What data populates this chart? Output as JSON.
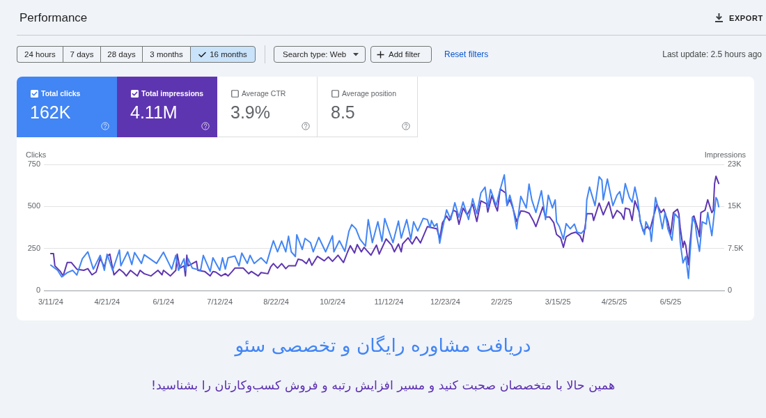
{
  "chart_data": {
    "type": "line",
    "title": "Performance",
    "ylabel": "Clicks",
    "y2label": "Impressions",
    "xlim": [
      "2024-03-06",
      "2025-07-14"
    ],
    "xticks": [
      {
        "value": "2024-03-11",
        "label": "3/11/24"
      },
      {
        "value": "2024-04-21",
        "label": "4/21/24"
      },
      {
        "value": "2024-06-01",
        "label": "6/1/24"
      },
      {
        "value": "2024-07-12",
        "label": "7/12/24"
      },
      {
        "value": "2024-08-22",
        "label": "8/22/24"
      },
      {
        "value": "2024-10-02",
        "label": "10/2/24"
      },
      {
        "value": "2024-11-12",
        "label": "11/12/24"
      },
      {
        "value": "2024-12-23",
        "label": "12/23/24"
      },
      {
        "value": "2025-02-02",
        "label": "2/2/25"
      },
      {
        "value": "2025-03-15",
        "label": "3/15/25"
      },
      {
        "value": "2025-04-25",
        "label": "4/25/25"
      },
      {
        "value": "2025-06-05",
        "label": "6/5/25"
      }
    ],
    "ylim": [
      0,
      750
    ],
    "yticks": [
      0,
      250,
      500,
      750
    ],
    "y2lim": [
      0,
      22500
    ],
    "y2ticks": [
      0,
      {
        "value": 7500,
        "label": "7.5K"
      },
      {
        "value": 15000,
        "label": "15K"
      },
      {
        "value": 22500,
        "label": "23K"
      }
    ],
    "grid": "y",
    "legend": "top left",
    "series": [
      {
        "name": "Total clicks",
        "color": "#4285f4",
        "x": [
          "2024-03-11",
          "2024-03-16",
          "2024-03-19",
          "2024-03-23",
          "2024-03-27",
          "2024-03-30",
          "2024-04-03",
          "2024-04-07",
          "2024-04-11",
          "2024-04-16",
          "2024-04-19",
          "2024-04-21",
          "2024-04-25",
          "2024-04-30",
          "2024-05-01",
          "2024-05-06",
          "2024-05-09",
          "2024-05-11",
          "2024-05-16",
          "2024-05-18",
          "2024-05-27",
          "2024-06-01",
          "2024-06-07",
          "2024-06-10",
          "2024-06-12",
          "2024-06-16",
          "2024-06-17",
          "2024-06-19",
          "2024-06-22",
          "2024-06-28",
          "2024-06-30",
          "2024-07-05",
          "2024-07-07",
          "2024-07-12",
          "2024-07-14",
          "2024-07-16",
          "2024-07-18",
          "2024-07-23",
          "2024-07-26",
          "2024-07-28",
          "2024-08-01",
          "2024-08-03",
          "2024-08-06",
          "2024-08-11",
          "2024-08-15",
          "2024-08-18",
          "2024-08-20",
          "2024-08-23",
          "2024-08-26",
          "2024-08-29",
          "2024-08-31",
          "2024-09-02",
          "2024-09-05",
          "2024-09-06",
          "2024-09-10",
          "2024-09-12",
          "2024-09-16",
          "2024-09-18",
          "2024-09-22",
          "2024-09-27",
          "2024-10-02",
          "2024-10-03",
          "2024-10-07",
          "2024-10-11",
          "2024-10-14",
          "2024-10-16",
          "2024-10-19",
          "2024-10-22",
          "2024-10-26",
          "2024-10-28",
          "2024-10-31",
          "2024-11-04",
          "2024-11-07",
          "2024-11-09",
          "2024-11-15",
          "2024-11-19",
          "2024-11-21",
          "2024-11-23",
          "2024-11-25",
          "2024-11-28",
          "2024-11-30",
          "2024-12-03",
          "2024-12-07",
          "2024-12-10",
          "2024-12-12",
          "2024-12-13",
          "2024-12-15",
          "2024-12-17",
          "2024-12-19",
          "2024-12-21",
          "2024-12-24",
          "2024-12-27",
          "2024-12-30",
          "2025-01-02",
          "2025-01-05",
          "2025-01-09",
          "2025-01-12",
          "2025-01-15",
          "2025-01-18",
          "2025-01-21",
          "2025-01-23",
          "2025-01-25",
          "2025-01-29",
          "2025-02-01",
          "2025-02-04",
          "2025-02-06",
          "2025-02-08",
          "2025-02-10",
          "2025-02-13",
          "2025-02-16",
          "2025-02-20",
          "2025-02-22",
          "2025-02-24",
          "2025-02-27",
          "2025-03-03",
          "2025-03-06",
          "2025-03-08",
          "2025-03-11",
          "2025-03-13",
          "2025-03-14",
          "2025-03-16",
          "2025-03-19",
          "2025-03-21",
          "2025-03-24",
          "2025-03-27",
          "2025-03-29",
          "2025-04-01",
          "2025-04-04",
          "2025-04-05",
          "2025-04-07",
          "2025-04-11",
          "2025-04-14",
          "2025-04-16",
          "2025-04-17",
          "2025-04-20",
          "2025-04-24",
          "2025-04-27",
          "2025-04-29",
          "2025-05-01",
          "2025-05-03",
          "2025-05-06",
          "2025-05-08",
          "2025-05-10",
          "2025-05-12",
          "2025-05-14",
          "2025-05-17",
          "2025-05-18",
          "2025-05-21",
          "2025-05-22",
          "2025-05-25",
          "2025-05-28",
          "2025-05-30",
          "2025-06-01",
          "2025-06-03",
          "2025-06-06",
          "2025-06-08",
          "2025-06-11",
          "2025-06-12",
          "2025-06-14",
          "2025-06-16",
          "2025-06-18",
          "2025-06-19",
          "2025-06-21",
          "2025-06-23",
          "2025-06-24",
          "2025-06-26",
          "2025-06-28",
          "2025-07-01",
          "2025-07-02",
          "2025-07-05",
          "2025-07-08",
          "2025-07-09",
          "2025-07-10"
        ],
        "values": [
          151,
          120,
          81,
          106,
          120,
          92,
          189,
          230,
          127,
          209,
          120,
          216,
          120,
          241,
          147,
          230,
          154,
          226,
          161,
          213,
          161,
          228,
          127,
          209,
          120,
          189,
          120,
          189,
          133,
          120,
          209,
          113,
          195,
          120,
          195,
          127,
          195,
          205,
          147,
          223,
          161,
          209,
          161,
          195,
          161,
          244,
          296,
          230,
          294,
          230,
          323,
          230,
          202,
          332,
          244,
          310,
          285,
          230,
          316,
          230,
          326,
          230,
          296,
          233,
          354,
          392,
          367,
          305,
          264,
          422,
          285,
          409,
          292,
          428,
          285,
          413,
          312,
          367,
          422,
          305,
          409,
          354,
          429,
          422,
          374,
          416,
          381,
          398,
          281,
          367,
          480,
          422,
          522,
          436,
          526,
          422,
          546,
          457,
          581,
          615,
          491,
          601,
          505,
          601,
          688,
          505,
          567,
          505,
          367,
          560,
          491,
          633,
          539,
          464,
          594,
          422,
          567,
          491,
          539,
          409,
          381,
          305,
          398,
          367,
          395,
          347,
          340,
          367,
          539,
          615,
          505,
          677,
          656,
          539,
          663,
          505,
          567,
          588,
          519,
          636,
          553,
          526,
          615,
          539,
          409,
          333,
          409,
          361,
          292,
          553,
          457,
          367,
          464,
          367,
          299,
          457,
          429,
          285,
          164,
          202,
          72,
          202,
          436,
          395,
          326,
          233,
          409,
          395,
          464,
          326,
          553,
          539,
          498
        ]
      },
      {
        "name": "Total impressions",
        "color": "#5e35b1",
        "axis": "y2",
        "x": [
          "2024-03-11",
          "2024-03-13",
          "2024-03-14",
          "2024-03-18",
          "2024-03-20",
          "2024-03-23",
          "2024-03-26",
          "2024-03-30",
          "2024-04-04",
          "2024-04-07",
          "2024-04-10",
          "2024-04-13",
          "2024-04-16",
          "2024-04-19",
          "2024-04-21",
          "2024-04-23",
          "2024-04-25",
          "2024-04-26",
          "2024-04-30",
          "2024-05-03",
          "2024-05-05",
          "2024-05-08",
          "2024-05-13",
          "2024-05-15",
          "2024-05-18",
          "2024-05-23",
          "2024-05-28",
          "2024-05-31",
          "2024-06-01",
          "2024-06-06",
          "2024-06-10",
          "2024-06-11",
          "2024-06-13",
          "2024-06-16",
          "2024-06-17",
          "2024-06-18",
          "2024-06-19",
          "2024-06-25",
          "2024-06-26",
          "2024-07-01",
          "2024-07-05",
          "2024-07-07",
          "2024-07-09",
          "2024-07-13",
          "2024-07-16",
          "2024-07-18",
          "2024-07-21",
          "2024-07-23",
          "2024-07-29",
          "2024-08-02",
          "2024-08-04",
          "2024-08-09",
          "2024-08-11",
          "2024-08-16",
          "2024-08-18",
          "2024-08-20",
          "2024-08-23",
          "2024-08-26",
          "2024-08-29",
          "2024-08-31",
          "2024-09-05",
          "2024-09-07",
          "2024-09-10",
          "2024-09-13",
          "2024-09-15",
          "2024-09-17",
          "2024-09-21",
          "2024-09-26",
          "2024-09-29",
          "2024-10-02",
          "2024-10-06",
          "2024-10-10",
          "2024-10-13",
          "2024-10-15",
          "2024-10-18",
          "2024-10-20",
          "2024-10-23",
          "2024-10-25",
          "2024-10-30",
          "2024-11-03",
          "2024-11-05",
          "2024-11-10",
          "2024-11-14",
          "2024-11-16",
          "2024-11-19",
          "2024-11-21",
          "2024-11-22",
          "2024-11-26",
          "2024-11-29",
          "2024-12-02",
          "2024-12-05",
          "2024-12-10",
          "2024-12-17",
          "2024-12-19",
          "2024-12-21",
          "2024-12-24",
          "2024-12-26",
          "2024-12-29",
          "2024-12-31",
          "2025-01-02",
          "2025-01-05",
          "2025-01-08",
          "2025-01-12",
          "2025-01-15",
          "2025-01-18",
          "2025-01-22",
          "2025-01-23",
          "2025-01-26",
          "2025-01-28",
          "2025-01-30",
          "2025-02-01",
          "2025-02-05",
          "2025-02-06",
          "2025-02-08",
          "2025-02-10",
          "2025-02-13",
          "2025-02-16",
          "2025-02-19",
          "2025-02-22",
          "2025-02-25",
          "2025-02-27",
          "2025-03-02",
          "2025-03-04",
          "2025-03-06",
          "2025-03-09",
          "2025-03-12",
          "2025-03-14",
          "2025-03-17",
          "2025-03-19",
          "2025-03-21",
          "2025-03-25",
          "2025-03-28",
          "2025-03-31",
          "2025-04-02",
          "2025-04-04",
          "2025-04-05",
          "2025-04-09",
          "2025-04-10",
          "2025-04-14",
          "2025-04-17",
          "2025-04-21",
          "2025-04-24",
          "2025-04-27",
          "2025-04-30",
          "2025-05-02",
          "2025-05-03",
          "2025-05-06",
          "2025-05-08",
          "2025-05-10",
          "2025-05-13",
          "2025-05-14",
          "2025-05-16",
          "2025-05-19",
          "2025-05-21",
          "2025-05-23",
          "2025-05-26",
          "2025-05-29",
          "2025-05-31",
          "2025-06-03",
          "2025-06-05",
          "2025-06-07",
          "2025-06-10",
          "2025-06-11",
          "2025-06-12",
          "2025-06-14",
          "2025-06-15",
          "2025-06-16",
          "2025-06-18",
          "2025-06-19",
          "2025-06-21",
          "2025-06-22",
          "2025-06-25",
          "2025-06-26",
          "2025-06-27",
          "2025-06-30",
          "2025-07-02",
          "2025-07-05",
          "2025-07-06",
          "2025-07-07",
          "2025-07-08",
          "2025-07-10"
        ],
        "values": [
          6600,
          6600,
          4400,
          3400,
          2600,
          5000,
          5000,
          3800,
          3600,
          3900,
          2800,
          3300,
          5700,
          4200,
          6100,
          6500,
          4000,
          2800,
          3800,
          3200,
          2600,
          3600,
          2600,
          3600,
          3000,
          2600,
          3600,
          2800,
          3600,
          2600,
          3600,
          6500,
          4000,
          4400,
          2600,
          6300,
          4400,
          5200,
          3600,
          3400,
          2600,
          3400,
          3300,
          2600,
          3000,
          2600,
          3400,
          4000,
          4000,
          3000,
          3400,
          2600,
          3200,
          3000,
          4200,
          4800,
          4000,
          4800,
          3900,
          4400,
          4400,
          5600,
          5400,
          4800,
          5700,
          4500,
          6100,
          5300,
          6000,
          5200,
          6300,
          5000,
          6900,
          8000,
          6700,
          8200,
          6900,
          7700,
          6300,
          8100,
          6500,
          9200,
          8100,
          6900,
          8300,
          6900,
          8300,
          9400,
          8300,
          9600,
          8500,
          11400,
          11000,
          9200,
          12100,
          13300,
          12500,
          14300,
          14100,
          11800,
          14700,
          13500,
          15400,
          12300,
          16000,
          15500,
          14000,
          17000,
          15400,
          14200,
          18100,
          17400,
          15200,
          16200,
          14900,
          12300,
          14200,
          14100,
          13800,
          12500,
          11400,
          13500,
          14900,
          13100,
          13100,
          12100,
          10000,
          9400,
          7700,
          9600,
          10200,
          10400,
          9800,
          8700,
          11800,
          13700,
          13700,
          12500,
          15600,
          13500,
          15800,
          12900,
          14300,
          13700,
          12700,
          14700,
          14500,
          12500,
          16000,
          14100,
          12300,
          10600,
          11400,
          10800,
          12700,
          15400,
          13900,
          14500,
          12300,
          10000,
          13900,
          14500,
          13700,
          11200,
          7700,
          8800,
          8100,
          4600,
          8100,
          13100,
          13300,
          10800,
          9600,
          13900,
          14300,
          16200,
          13900,
          14300,
          19100,
          20400,
          19100
        ]
      }
    ],
    "annotations": [
      "24 hours",
      "7 days",
      "28 days",
      "3 months",
      "16 months",
      "Search type: Web",
      "Add filter",
      "Reset filters",
      "Last update: 2.5 hours ago",
      "EXPORT",
      "162K",
      "4.11M",
      "Average CTR",
      "3.9%",
      "Average position",
      "8.5",
      "دریافت مشاوره رایگان و تخصصی سئو",
      "همین حالا با متخصصان صحبت کنید و مسیر افزایش رتبه و فروش کسب‌وکارتان را بشناسید!"
    ]
  }
}
